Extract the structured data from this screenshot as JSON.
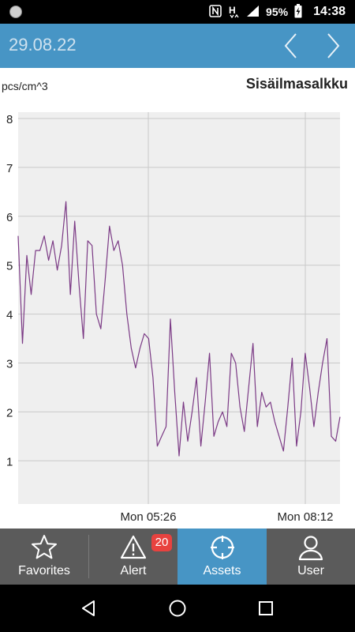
{
  "status_bar": {
    "battery": "95%",
    "time": "14:38"
  },
  "header": {
    "date": "29.08.22"
  },
  "chart_data": {
    "type": "line",
    "title": "Sisäilmasalkku",
    "ylabel": "pcs/cm^3",
    "xlabel": "",
    "ylim": [
      0,
      8
    ],
    "y_ticks": [
      1,
      2,
      3,
      4,
      5,
      6,
      7,
      8
    ],
    "x_tick_labels": [
      "Mon 05:26",
      "Mon 08:12"
    ],
    "grid": true,
    "color": "#7b3a85",
    "series": [
      {
        "values": [
          5.6,
          3.4,
          5.2,
          4.4,
          5.3,
          5.3,
          5.6,
          5.1,
          5.5,
          4.9,
          5.4,
          6.3,
          4.4,
          5.9,
          4.6,
          3.5,
          5.5,
          5.4,
          4.0,
          3.7,
          4.7,
          5.8,
          5.3,
          5.5,
          5.0,
          4.0,
          3.3,
          2.9,
          3.3,
          3.6,
          3.5,
          2.7,
          1.3,
          1.5,
          1.7,
          3.9,
          2.4,
          1.1,
          2.2,
          1.4,
          2.0,
          2.7,
          1.3,
          2.2,
          3.2,
          1.5,
          1.8,
          2.0,
          1.7,
          3.2,
          3.0,
          2.1,
          1.6,
          2.5,
          3.4,
          1.7,
          2.4,
          2.1,
          2.2,
          1.8,
          1.5,
          1.2,
          2.1,
          3.1,
          1.3,
          2.0,
          3.2,
          2.5,
          1.7,
          2.4,
          3.0,
          3.5,
          1.5,
          1.4,
          1.9
        ]
      }
    ]
  },
  "tabs": [
    {
      "label": "Favorites",
      "icon": "star-icon",
      "active": false
    },
    {
      "label": "Alert",
      "icon": "warning-icon",
      "active": false,
      "badge": "20"
    },
    {
      "label": "Assets",
      "icon": "crosshair-icon",
      "active": true
    },
    {
      "label": "User",
      "icon": "user-icon",
      "active": false
    }
  ],
  "colors": {
    "accent": "#4795c5",
    "tabbar": "#5b5b5b",
    "badge": "#e8423f",
    "line": "#7b3a85"
  }
}
